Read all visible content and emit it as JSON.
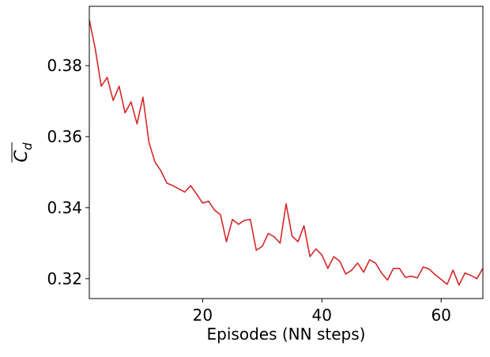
{
  "chart_data": {
    "type": "line",
    "xlabel": "Episodes (NN steps)",
    "ylabel": "Cd",
    "x": [
      1,
      2,
      3,
      4,
      5,
      6,
      7,
      8,
      9,
      10,
      11,
      12,
      13,
      14,
      15,
      16,
      17,
      18,
      19,
      20,
      21,
      22,
      23,
      24,
      25,
      26,
      27,
      28,
      29,
      30,
      31,
      32,
      33,
      34,
      35,
      36,
      37,
      38,
      39,
      40,
      41,
      42,
      43,
      44,
      45,
      46,
      47,
      48,
      49,
      50,
      51,
      52,
      53,
      54,
      55,
      56,
      57,
      58,
      59,
      60,
      61,
      62,
      63,
      64,
      65,
      66,
      67
    ],
    "series": [
      {
        "color": "#d62728",
        "values": [
          0.3929,
          0.3847,
          0.3742,
          0.3767,
          0.3702,
          0.3742,
          0.3667,
          0.3698,
          0.3636,
          0.3711,
          0.3584,
          0.3529,
          0.3504,
          0.3469,
          0.3462,
          0.3453,
          0.3444,
          0.3462,
          0.3438,
          0.3413,
          0.3418,
          0.3393,
          0.338,
          0.3304,
          0.3367,
          0.3353,
          0.3364,
          0.3367,
          0.328,
          0.3291,
          0.3327,
          0.3318,
          0.33,
          0.3411,
          0.332,
          0.3304,
          0.3349,
          0.3262,
          0.3284,
          0.3267,
          0.3229,
          0.3262,
          0.3249,
          0.3213,
          0.3224,
          0.3244,
          0.3218,
          0.3253,
          0.3244,
          0.3216,
          0.3196,
          0.3229,
          0.3229,
          0.3204,
          0.3207,
          0.3202,
          0.3233,
          0.3227,
          0.3211,
          0.3198,
          0.3184,
          0.3224,
          0.3182,
          0.3216,
          0.3209,
          0.32,
          0.3229
        ]
      }
    ],
    "xlim": [
      1,
      67
    ],
    "ylim": [
      0.3144,
      0.3967
    ],
    "xticks": [
      20,
      40,
      60
    ],
    "yticks": [
      0.32,
      0.34,
      0.36,
      0.38
    ]
  }
}
